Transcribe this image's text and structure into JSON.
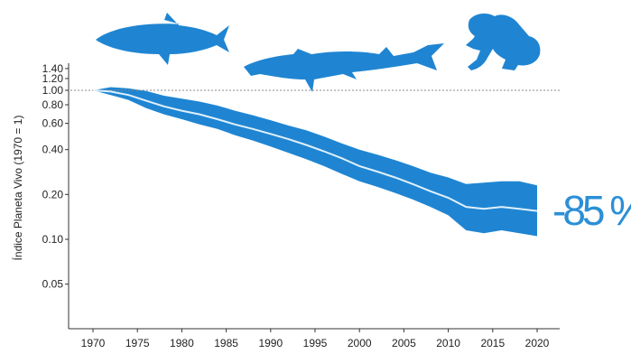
{
  "colors": {
    "band": "#1f85d2",
    "line": "#dff0fb",
    "animals": "#1f85d2",
    "reference": "#888888",
    "axis": "#333333",
    "callout": "#2b8fd6"
  },
  "icons": [
    "fish-silhouette-icon",
    "sturgeon-silhouette-icon",
    "frog-silhouette-icon"
  ],
  "chart_data": {
    "type": "area",
    "title": "",
    "xlabel": "",
    "ylabel": "Índice Planeta Vivo (1970 = 1)",
    "y_scale": "log",
    "xlim": [
      1970,
      2020
    ],
    "ylim": [
      0.03,
      1.5
    ],
    "x_ticks": [
      "1970",
      "1975",
      "1980",
      "1985",
      "1990",
      "1995",
      "2000",
      "2005",
      "2010",
      "2015",
      "2020"
    ],
    "y_ticks": [
      {
        "value": 1.4,
        "label": "1.40"
      },
      {
        "value": 1.2,
        "label": "1.20"
      },
      {
        "value": 1.0,
        "label": "1.00"
      },
      {
        "value": 0.8,
        "label": "0.80"
      },
      {
        "value": 0.6,
        "label": "0.60"
      },
      {
        "value": 0.4,
        "label": "0.40"
      },
      {
        "value": 0.2,
        "label": "0.20"
      },
      {
        "value": 0.1,
        "label": "0.10"
      },
      {
        "value": 0.05,
        "label": "0.05"
      }
    ],
    "reference_line": 1.0,
    "annotation": "-85 %",
    "x": [
      1970,
      1972,
      1974,
      1976,
      1978,
      1980,
      1982,
      1984,
      1986,
      1988,
      1990,
      1992,
      1994,
      1996,
      1998,
      2000,
      2002,
      2004,
      2006,
      2008,
      2010,
      2012,
      2014,
      2016,
      2018,
      2020
    ],
    "series": [
      {
        "values": [
          1.0,
          0.98,
          0.93,
          0.85,
          0.78,
          0.73,
          0.69,
          0.64,
          0.59,
          0.55,
          0.51,
          0.47,
          0.43,
          0.39,
          0.35,
          0.31,
          0.285,
          0.26,
          0.235,
          0.21,
          0.19,
          0.165,
          0.16,
          0.165,
          0.16,
          0.155
        ]
      },
      {
        "name": "upper",
        "values": [
          1.0,
          1.05,
          1.03,
          0.99,
          0.92,
          0.88,
          0.84,
          0.79,
          0.73,
          0.68,
          0.63,
          0.58,
          0.54,
          0.49,
          0.44,
          0.4,
          0.37,
          0.34,
          0.31,
          0.28,
          0.26,
          0.235,
          0.24,
          0.245,
          0.245,
          0.23
        ]
      },
      {
        "name": "lower",
        "values": [
          1.0,
          0.93,
          0.86,
          0.76,
          0.69,
          0.64,
          0.59,
          0.55,
          0.5,
          0.46,
          0.42,
          0.38,
          0.345,
          0.31,
          0.275,
          0.245,
          0.225,
          0.205,
          0.185,
          0.165,
          0.145,
          0.115,
          0.11,
          0.115,
          0.11,
          0.105
        ]
      }
    ]
  }
}
